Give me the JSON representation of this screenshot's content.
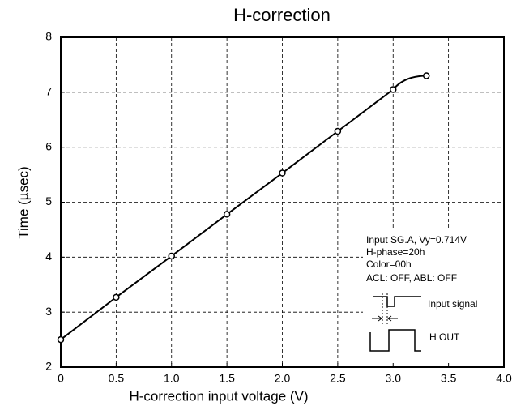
{
  "chart_data": {
    "type": "line",
    "title": "H-correction",
    "x_label": "H-correction input voltage (V)",
    "y_label": "Time (µsec)",
    "x": [
      0,
      0.5,
      1.0,
      1.5,
      2.0,
      2.5,
      3.0,
      3.3
    ],
    "values": [
      2.5,
      3.27,
      4.02,
      4.78,
      5.53,
      6.29,
      7.05,
      7.3
    ],
    "color": "#000000",
    "xlim": [
      0,
      4
    ],
    "xticks": [
      0,
      0.5,
      {
        "value": 1,
        "label": "1.0"
      },
      1.5,
      {
        "value": 2,
        "label": "2.0"
      },
      2.5,
      {
        "value": 3,
        "label": "3.0"
      },
      3.5,
      {
        "value": 4,
        "label": "4.0"
      }
    ],
    "ylim": [
      2,
      8
    ],
    "yticks": [
      2,
      3,
      4,
      5,
      6,
      7,
      8
    ],
    "grid": true,
    "annotations": [
      "Input SG.A, Vy=0.714V",
      "H-phase=20h",
      "Color=00h",
      "ACL: OFF, ABL: OFF"
    ],
    "waveform_labels": [
      "Input signal",
      "H OUT"
    ]
  }
}
